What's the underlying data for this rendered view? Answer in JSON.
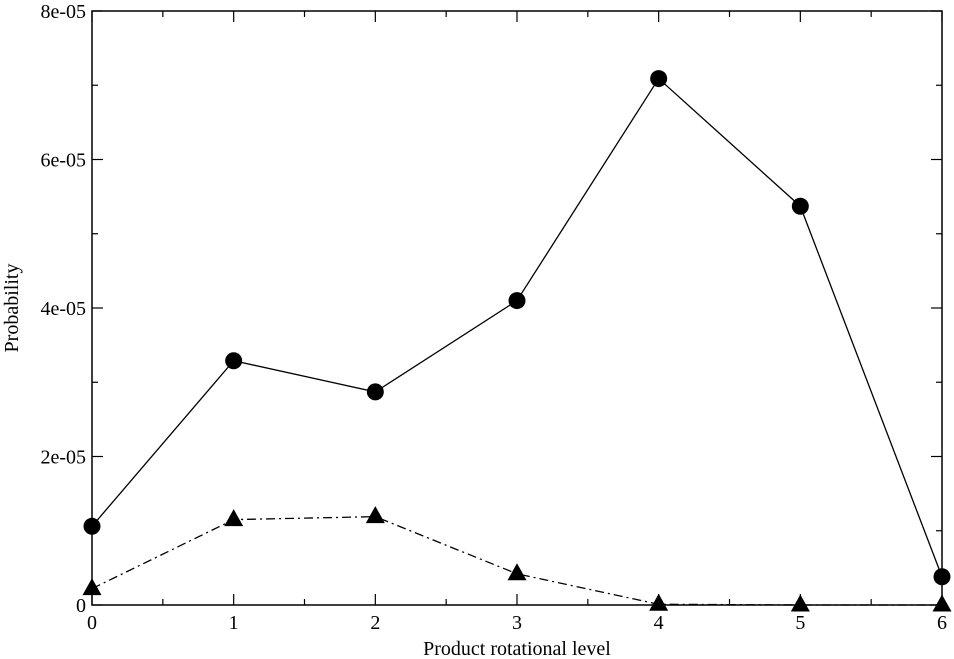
{
  "chart_data": {
    "type": "line",
    "title": "",
    "xlabel": "Product rotational level",
    "ylabel": "Probability",
    "xlim": [
      0,
      6
    ],
    "ylim": [
      0,
      8e-05
    ],
    "x_ticks": [
      0,
      1,
      2,
      3,
      4,
      5,
      6
    ],
    "x_tick_labels": [
      "0",
      "1",
      "2",
      "3",
      "4",
      "5",
      "6"
    ],
    "y_ticks": [
      0,
      2e-05,
      4e-05,
      6e-05,
      8e-05
    ],
    "y_tick_labels": [
      "0",
      "2e-05",
      "4e-05",
      "6e-05",
      "8e-05"
    ],
    "grid": false,
    "legend": "none",
    "series": [
      {
        "x": [
          0,
          1,
          2,
          3,
          4,
          5,
          6
        ],
        "values": [
          1.06e-05,
          3.29e-05,
          2.87e-05,
          4.1e-05,
          7.09e-05,
          5.37e-05,
          3.8e-06
        ],
        "marker": "circle",
        "line_style": "solid",
        "color": "#000000"
      },
      {
        "x": [
          0,
          1,
          2,
          3,
          4,
          5,
          6
        ],
        "values": [
          2.2e-06,
          1.15e-05,
          1.19e-05,
          4.2e-06,
          1e-07,
          0,
          0
        ],
        "marker": "triangle",
        "line_style": "dash-dot",
        "color": "#000000"
      }
    ]
  }
}
